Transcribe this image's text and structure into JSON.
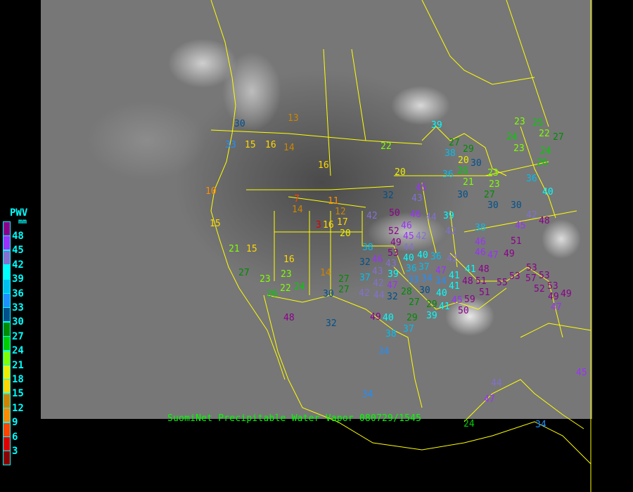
{
  "caption": "SuomiNet Precipitable Water Vapor 080729/1545",
  "legend": {
    "title": "PWV",
    "unit": "mm",
    "labels": [
      "48",
      "45",
      "42",
      "39",
      "36",
      "33",
      "30",
      "27",
      "24",
      "21",
      "18",
      "15",
      "12",
      "9",
      "6",
      "3"
    ],
    "colors": [
      "#8B008B",
      "#9B30FF",
      "#8470D0",
      "#00FFFF",
      "#00BFEF",
      "#1E90FF",
      "#00508C",
      "#008B00",
      "#00CD00",
      "#7FFF00",
      "#EEEE00",
      "#FFD700",
      "#CD8500",
      "#FF8C00",
      "#FF4500",
      "#DD0000",
      "#8B0000"
    ]
  },
  "map": {
    "boundary_color": "#FFFF00",
    "background": "infrared satellite imagery (grayscale)"
  },
  "stations": [
    "30",
    "33",
    "15",
    "16",
    "14",
    "13",
    "16",
    "10",
    "15",
    "21",
    "15",
    "27",
    "23",
    "23",
    "22",
    "24",
    "26",
    "16",
    "14",
    "27",
    "30",
    "3",
    "20",
    "11",
    "12",
    "17",
    "16",
    "7",
    "14",
    "48",
    "32",
    "22",
    "20",
    "32",
    "45",
    "43",
    "50",
    "46",
    "42",
    "46",
    "52",
    "45",
    "42",
    "49",
    "44",
    "39",
    "42",
    "38",
    "46",
    "39",
    "27",
    "38",
    "29",
    "20",
    "30",
    "26",
    "36",
    "21",
    "23",
    "23",
    "27",
    "30",
    "30",
    "30",
    "24",
    "23",
    "22",
    "27",
    "24",
    "26",
    "36",
    "40",
    "42",
    "48",
    "45",
    "51",
    "23",
    "25",
    "38",
    "53",
    "44",
    "40",
    "46",
    "43",
    "39",
    "36",
    "40",
    "37",
    "36",
    "32",
    "43",
    "42",
    "33",
    "34",
    "47",
    "30",
    "37",
    "27",
    "34",
    "41",
    "41",
    "40",
    "48",
    "47",
    "42",
    "44",
    "32",
    "28",
    "27",
    "29",
    "41",
    "39",
    "45",
    "50",
    "59",
    "42",
    "41",
    "48",
    "46",
    "47",
    "49",
    "51",
    "51",
    "55",
    "53",
    "53",
    "57",
    "53",
    "52",
    "53",
    "49",
    "49",
    "47",
    "49",
    "40",
    "29",
    "37",
    "38",
    "34",
    "34",
    "24",
    "47",
    "44",
    "45",
    "34",
    "36"
  ]
}
